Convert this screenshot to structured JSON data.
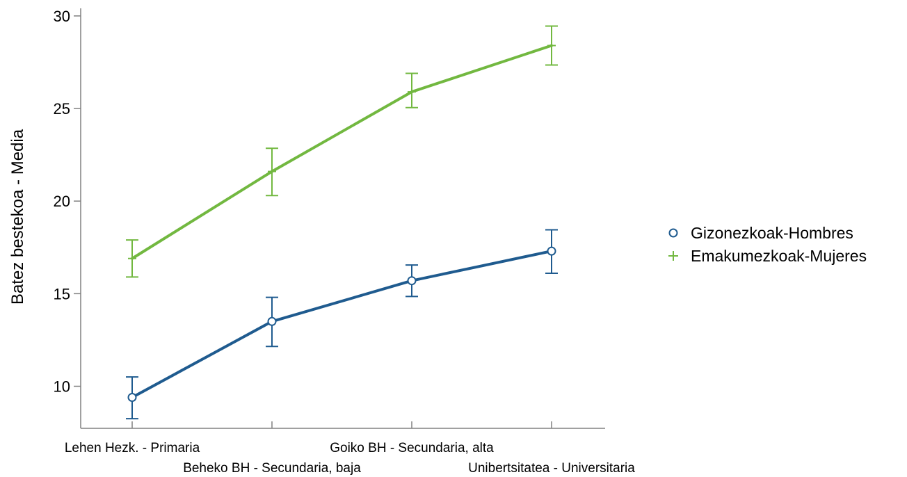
{
  "chart_data": {
    "type": "line",
    "title": "",
    "xlabel": "",
    "ylabel": "Batez bestekoa - Media",
    "categories": [
      "Lehen Hezk. - Primaria",
      "Beheko BH - Secundaria, baja",
      "Goiko BH - Secundaria, alta",
      "Unibertsitatea - Universitaria"
    ],
    "ylim": [
      7.6,
      30.5
    ],
    "yticks": [
      10,
      15,
      20,
      25,
      30
    ],
    "grid": false,
    "legend_position": "right",
    "error_bars": true,
    "series": [
      {
        "name": "Gizonezkoak-Hombres",
        "marker": "circle",
        "color": "#1f5b8f",
        "values": [
          9.4,
          13.5,
          15.7,
          17.3
        ],
        "err_low": [
          8.25,
          12.15,
          14.85,
          16.1
        ],
        "err_high": [
          10.5,
          14.8,
          16.55,
          18.45
        ]
      },
      {
        "name": "Emakumezkoak-Mujeres",
        "marker": "plus",
        "color": "#72b840",
        "values": [
          16.9,
          21.6,
          25.9,
          28.4
        ],
        "err_low": [
          15.9,
          20.3,
          25.05,
          27.35
        ],
        "err_high": [
          17.9,
          22.85,
          26.9,
          29.45
        ]
      }
    ]
  }
}
